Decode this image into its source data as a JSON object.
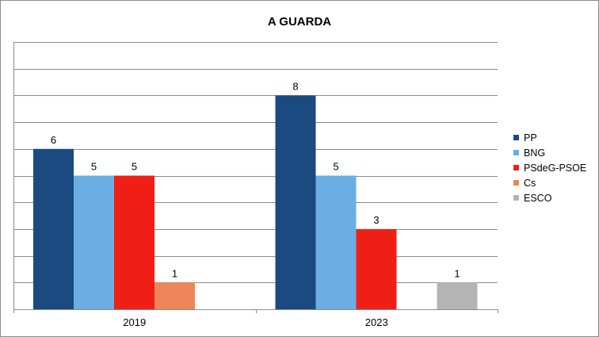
{
  "chart_data": {
    "type": "bar",
    "title": "A GUARDA",
    "categories": [
      "2019",
      "2023"
    ],
    "ylim": [
      0,
      10
    ],
    "grid": true,
    "legend_position": "right",
    "series": [
      {
        "name": "PP",
        "color": "#1a4a80",
        "values": [
          6,
          8
        ]
      },
      {
        "name": "BNG",
        "color": "#6aaee3",
        "values": [
          5,
          5
        ]
      },
      {
        "name": "PSdeG-PSOE",
        "color": "#f01f16",
        "values": [
          5,
          3
        ]
      },
      {
        "name": "Cs",
        "color": "#f0855a",
        "values": [
          1,
          null
        ]
      },
      {
        "name": "ESCO",
        "color": "#b4b4b4",
        "values": [
          null,
          1
        ]
      }
    ]
  }
}
